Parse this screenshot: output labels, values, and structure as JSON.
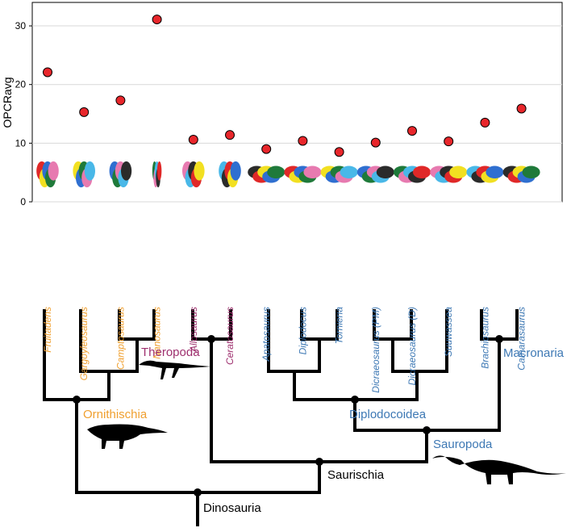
{
  "chart_data": {
    "type": "scatter",
    "ylabel": "OPCRavg",
    "categories": [
      "Fruitadens",
      "Gargoyleosaurus",
      "Camptosaurus",
      "Nanosaurus",
      "Allosaurus",
      "Ceratosaurus",
      "Apatosaurus",
      "Diplodocus",
      "Tornieria",
      "Dicraeosaurus (PM)",
      "Dicraeosaurus (D)",
      "Suuwassea",
      "Brachiosaurus",
      "Camarasaurus"
    ],
    "values": [
      22.1,
      15.3,
      17.3,
      31.1,
      10.6,
      11.4,
      9.0,
      10.4,
      8.5,
      10.1,
      12.1,
      10.3,
      13.5,
      15.9
    ],
    "color": "#e8262b",
    "category_colors": [
      "#f0a030",
      "#f0a030",
      "#f0a030",
      "#f0a030",
      "#9e2f6e",
      "#9e2f6e",
      "#3d78b4",
      "#3d78b4",
      "#3d78b4",
      "#3d78b4",
      "#3d78b4",
      "#3d78b4",
      "#3d78b4",
      "#3d78b4"
    ],
    "ylim": [
      0,
      34
    ],
    "yticks": [
      0,
      10,
      20,
      30
    ],
    "grid": true
  },
  "tree": {
    "clades": [
      "Theropoda",
      "Ornithischia",
      "Diplodocoidea",
      "Macronaria",
      "Sauropoda",
      "Saurischia",
      "Dinosauria"
    ],
    "clade_colors": [
      "#9e2f6e",
      "#f0a030",
      "#3d78b4",
      "#3d78b4",
      "#3d78b4",
      "#000000",
      "#000000"
    ]
  }
}
